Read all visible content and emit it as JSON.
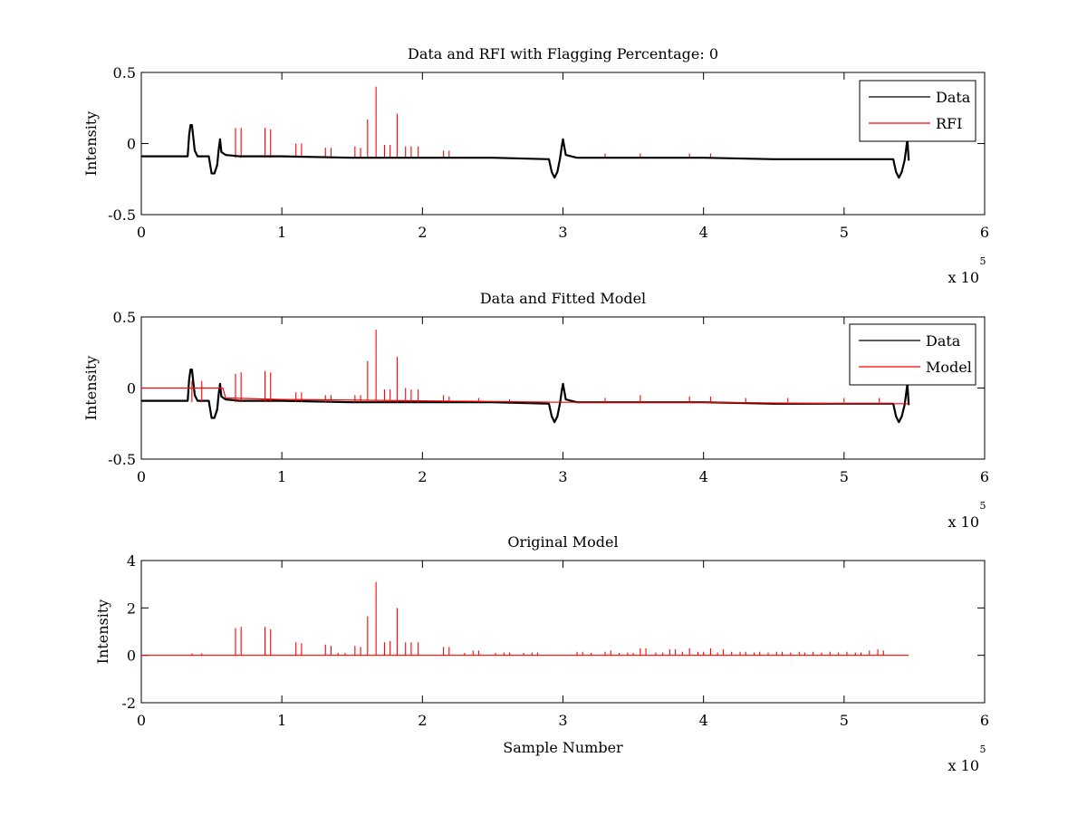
{
  "chart_data": [
    {
      "type": "line",
      "title": "Data and RFI with Flagging Percentage: 0",
      "xlabel": "",
      "ylabel": "Intensity",
      "xlim": [
        0,
        600000
      ],
      "ylim": [
        -0.5,
        0.5
      ],
      "xticks": [
        0,
        100000,
        200000,
        300000,
        400000,
        500000,
        600000
      ],
      "xtick_labels": [
        "0",
        "1",
        "2",
        "3",
        "4",
        "5",
        "6"
      ],
      "yticks": [
        -0.5,
        0,
        0.5
      ],
      "ytick_labels": [
        "-0.5",
        "0",
        "0.5"
      ],
      "x_multiplier": {
        "base": "x 10",
        "exponent": "5"
      },
      "grid": false,
      "legend": "top-right",
      "series": [
        {
          "name": "Data",
          "color": "#000000",
          "x": [
            0,
            33000,
            34000,
            35000,
            36000,
            38000,
            40000,
            48000,
            50000,
            52000,
            54000,
            55000,
            56000,
            57000,
            60000,
            70000,
            100000,
            150000,
            200000,
            250000,
            290000,
            292000,
            294000,
            296000,
            298000,
            299000,
            300000,
            302000,
            310000,
            350000,
            400000,
            450000,
            500000,
            535000,
            537000,
            539000,
            541000,
            543000,
            544000,
            545000,
            546000
          ],
          "y": [
            -0.09,
            -0.09,
            0.06,
            0.13,
            0.13,
            -0.05,
            -0.09,
            -0.09,
            -0.21,
            -0.21,
            -0.15,
            -0.05,
            0.03,
            -0.06,
            -0.08,
            -0.09,
            -0.09,
            -0.1,
            -0.1,
            -0.1,
            -0.11,
            -0.2,
            -0.24,
            -0.2,
            -0.1,
            -0.03,
            0.03,
            -0.08,
            -0.1,
            -0.1,
            -0.1,
            -0.11,
            -0.11,
            -0.11,
            -0.2,
            -0.24,
            -0.2,
            -0.12,
            -0.05,
            0.03,
            -0.12
          ]
        },
        {
          "name": "RFI",
          "color": "#ff0000",
          "spikes": [
            {
              "x": 67000,
              "y": 0.11
            },
            {
              "x": 71000,
              "y": 0.11
            },
            {
              "x": 88000,
              "y": 0.11
            },
            {
              "x": 92000,
              "y": 0.1
            },
            {
              "x": 110000,
              "y": 0.0
            },
            {
              "x": 114000,
              "y": 0.0
            },
            {
              "x": 131000,
              "y": -0.03
            },
            {
              "x": 135000,
              "y": -0.03
            },
            {
              "x": 152000,
              "y": -0.02
            },
            {
              "x": 156000,
              "y": -0.03
            },
            {
              "x": 161000,
              "y": 0.17
            },
            {
              "x": 167000,
              "y": 0.4
            },
            {
              "x": 173000,
              "y": -0.01
            },
            {
              "x": 177000,
              "y": -0.01
            },
            {
              "x": 182000,
              "y": 0.21
            },
            {
              "x": 188000,
              "y": -0.02
            },
            {
              "x": 192000,
              "y": -0.02
            },
            {
              "x": 197000,
              "y": -0.02
            },
            {
              "x": 215000,
              "y": -0.05
            },
            {
              "x": 219000,
              "y": -0.05
            },
            {
              "x": 330000,
              "y": -0.07
            },
            {
              "x": 355000,
              "y": -0.07
            },
            {
              "x": 390000,
              "y": -0.07
            },
            {
              "x": 405000,
              "y": -0.07
            }
          ],
          "baseline": -0.1
        }
      ]
    },
    {
      "type": "line",
      "title": "Data and Fitted Model",
      "xlabel": "",
      "ylabel": "Intensity",
      "xlim": [
        0,
        600000
      ],
      "ylim": [
        -0.5,
        0.5
      ],
      "xticks": [
        0,
        100000,
        200000,
        300000,
        400000,
        500000,
        600000
      ],
      "xtick_labels": [
        "0",
        "1",
        "2",
        "3",
        "4",
        "5",
        "6"
      ],
      "yticks": [
        -0.5,
        0,
        0.5
      ],
      "ytick_labels": [
        "-0.5",
        "0",
        "0.5"
      ],
      "x_multiplier": {
        "base": "x 10",
        "exponent": "5"
      },
      "grid": false,
      "legend": "top-right",
      "series": [
        {
          "name": "Data",
          "color": "#000000",
          "x": [
            0,
            33000,
            34000,
            35000,
            36000,
            38000,
            40000,
            48000,
            50000,
            52000,
            54000,
            55000,
            56000,
            57000,
            60000,
            70000,
            100000,
            150000,
            200000,
            250000,
            290000,
            292000,
            294000,
            296000,
            298000,
            299000,
            300000,
            302000,
            310000,
            350000,
            400000,
            450000,
            500000,
            535000,
            537000,
            539000,
            541000,
            543000,
            544000,
            545000,
            546000
          ],
          "y": [
            -0.09,
            -0.09,
            0.06,
            0.13,
            0.13,
            -0.05,
            -0.09,
            -0.09,
            -0.21,
            -0.21,
            -0.15,
            -0.05,
            0.03,
            -0.06,
            -0.08,
            -0.09,
            -0.09,
            -0.1,
            -0.1,
            -0.1,
            -0.11,
            -0.2,
            -0.24,
            -0.2,
            -0.1,
            -0.03,
            0.03,
            -0.08,
            -0.1,
            -0.1,
            -0.1,
            -0.11,
            -0.11,
            -0.11,
            -0.2,
            -0.24,
            -0.2,
            -0.12,
            -0.05,
            0.03,
            -0.12
          ]
        },
        {
          "name": "Model",
          "color": "#ff0000",
          "x": [
            0,
            58000,
            60000,
            100000,
            200000,
            300000,
            400000,
            500000,
            546000
          ],
          "y": [
            0.0,
            0.0,
            -0.07,
            -0.08,
            -0.09,
            -0.1,
            -0.1,
            -0.11,
            -0.11
          ],
          "spikes": [
            {
              "x": 36000,
              "y": 0.05
            },
            {
              "x": 43000,
              "y": 0.05
            },
            {
              "x": 67000,
              "y": 0.1
            },
            {
              "x": 71000,
              "y": 0.11
            },
            {
              "x": 88000,
              "y": 0.12
            },
            {
              "x": 92000,
              "y": 0.11
            },
            {
              "x": 110000,
              "y": -0.03
            },
            {
              "x": 114000,
              "y": -0.03
            },
            {
              "x": 131000,
              "y": -0.05
            },
            {
              "x": 135000,
              "y": -0.05
            },
            {
              "x": 152000,
              "y": -0.05
            },
            {
              "x": 156000,
              "y": -0.05
            },
            {
              "x": 161000,
              "y": 0.19
            },
            {
              "x": 167000,
              "y": 0.41
            },
            {
              "x": 173000,
              "y": -0.01
            },
            {
              "x": 177000,
              "y": -0.01
            },
            {
              "x": 182000,
              "y": 0.22
            },
            {
              "x": 188000,
              "y": 0.0
            },
            {
              "x": 192000,
              "y": -0.01
            },
            {
              "x": 197000,
              "y": -0.01
            },
            {
              "x": 215000,
              "y": -0.05
            },
            {
              "x": 219000,
              "y": -0.06
            },
            {
              "x": 240000,
              "y": -0.07
            },
            {
              "x": 262000,
              "y": -0.08
            },
            {
              "x": 330000,
              "y": -0.07
            },
            {
              "x": 355000,
              "y": -0.05
            },
            {
              "x": 390000,
              "y": -0.06
            },
            {
              "x": 405000,
              "y": -0.06
            },
            {
              "x": 430000,
              "y": -0.07
            },
            {
              "x": 460000,
              "y": -0.07
            },
            {
              "x": 500000,
              "y": -0.07
            },
            {
              "x": 525000,
              "y": -0.07
            }
          ],
          "baseline": -0.1
        }
      ]
    },
    {
      "type": "line",
      "title": "Original Model",
      "xlabel": "Sample Number",
      "ylabel": "Intensity",
      "xlim": [
        0,
        600000
      ],
      "ylim": [
        -2,
        4
      ],
      "xticks": [
        0,
        100000,
        200000,
        300000,
        400000,
        500000,
        600000
      ],
      "xtick_labels": [
        "0",
        "1",
        "2",
        "3",
        "4",
        "5",
        "6"
      ],
      "yticks": [
        -2,
        0,
        2,
        4
      ],
      "ytick_labels": [
        "-2",
        "0",
        "2",
        "4"
      ],
      "x_multiplier": {
        "base": "x 10",
        "exponent": "5"
      },
      "grid": false,
      "series": [
        {
          "color": "#ff0000",
          "x": [
            0,
            546000
          ],
          "y": [
            0,
            0
          ],
          "baseline": 0,
          "spikes": [
            {
              "x": 36000,
              "y": 0.08
            },
            {
              "x": 43000,
              "y": 0.08
            },
            {
              "x": 67000,
              "y": 1.15
            },
            {
              "x": 71000,
              "y": 1.2
            },
            {
              "x": 88000,
              "y": 1.2
            },
            {
              "x": 92000,
              "y": 1.1
            },
            {
              "x": 110000,
              "y": 0.55
            },
            {
              "x": 114000,
              "y": 0.5
            },
            {
              "x": 131000,
              "y": 0.45
            },
            {
              "x": 135000,
              "y": 0.4
            },
            {
              "x": 140000,
              "y": 0.1
            },
            {
              "x": 145000,
              "y": 0.1
            },
            {
              "x": 152000,
              "y": 0.4
            },
            {
              "x": 156000,
              "y": 0.35
            },
            {
              "x": 161000,
              "y": 1.65
            },
            {
              "x": 167000,
              "y": 3.1
            },
            {
              "x": 173000,
              "y": 0.55
            },
            {
              "x": 177000,
              "y": 0.6
            },
            {
              "x": 182000,
              "y": 2.0
            },
            {
              "x": 188000,
              "y": 0.55
            },
            {
              "x": 192000,
              "y": 0.55
            },
            {
              "x": 197000,
              "y": 0.55
            },
            {
              "x": 215000,
              "y": 0.35
            },
            {
              "x": 219000,
              "y": 0.35
            },
            {
              "x": 230000,
              "y": 0.1
            },
            {
              "x": 236000,
              "y": 0.2
            },
            {
              "x": 240000,
              "y": 0.2
            },
            {
              "x": 252000,
              "y": 0.1
            },
            {
              "x": 258000,
              "y": 0.12
            },
            {
              "x": 262000,
              "y": 0.12
            },
            {
              "x": 272000,
              "y": 0.1
            },
            {
              "x": 278000,
              "y": 0.12
            },
            {
              "x": 282000,
              "y": 0.12
            },
            {
              "x": 310000,
              "y": 0.15
            },
            {
              "x": 314000,
              "y": 0.15
            },
            {
              "x": 320000,
              "y": 0.1
            },
            {
              "x": 330000,
              "y": 0.15
            },
            {
              "x": 334000,
              "y": 0.2
            },
            {
              "x": 340000,
              "y": 0.1
            },
            {
              "x": 346000,
              "y": 0.12
            },
            {
              "x": 350000,
              "y": 0.1
            },
            {
              "x": 355000,
              "y": 0.3
            },
            {
              "x": 359000,
              "y": 0.3
            },
            {
              "x": 366000,
              "y": 0.12
            },
            {
              "x": 371000,
              "y": 0.12
            },
            {
              "x": 376000,
              "y": 0.25
            },
            {
              "x": 380000,
              "y": 0.25
            },
            {
              "x": 385000,
              "y": 0.15
            },
            {
              "x": 390000,
              "y": 0.3
            },
            {
              "x": 396000,
              "y": 0.15
            },
            {
              "x": 400000,
              "y": 0.15
            },
            {
              "x": 405000,
              "y": 0.3
            },
            {
              "x": 410000,
              "y": 0.12
            },
            {
              "x": 414000,
              "y": 0.25
            },
            {
              "x": 420000,
              "y": 0.15
            },
            {
              "x": 426000,
              "y": 0.15
            },
            {
              "x": 430000,
              "y": 0.15
            },
            {
              "x": 436000,
              "y": 0.12
            },
            {
              "x": 440000,
              "y": 0.15
            },
            {
              "x": 446000,
              "y": 0.12
            },
            {
              "x": 452000,
              "y": 0.15
            },
            {
              "x": 456000,
              "y": 0.15
            },
            {
              "x": 462000,
              "y": 0.12
            },
            {
              "x": 468000,
              "y": 0.15
            },
            {
              "x": 472000,
              "y": 0.12
            },
            {
              "x": 478000,
              "y": 0.15
            },
            {
              "x": 484000,
              "y": 0.12
            },
            {
              "x": 490000,
              "y": 0.15
            },
            {
              "x": 496000,
              "y": 0.12
            },
            {
              "x": 502000,
              "y": 0.15
            },
            {
              "x": 508000,
              "y": 0.12
            },
            {
              "x": 512000,
              "y": 0.12
            },
            {
              "x": 518000,
              "y": 0.2
            },
            {
              "x": 524000,
              "y": 0.25
            },
            {
              "x": 528000,
              "y": 0.2
            }
          ]
        }
      ]
    }
  ]
}
